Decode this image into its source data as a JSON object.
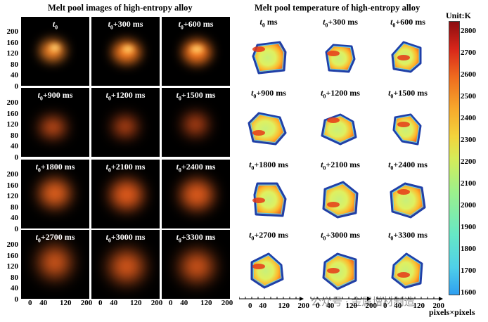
{
  "left_title": "Melt pool images of  high-entropy alloy",
  "right_title": "Melt pool temperature of  high-entropy alloy",
  "y_ticks": [
    "200",
    "160",
    "120",
    "80",
    "40",
    "0"
  ],
  "x_ticks": [
    "0",
    "40",
    "120",
    "200"
  ],
  "left_labels": [
    "t0",
    "t0+300 ms",
    "t0+600 ms",
    "t0+900 ms",
    "t0+1200 ms",
    "t0+1500 ms",
    "t0+1800 ms",
    "t0+2100 ms",
    "t0+2400 ms",
    "t0+2700 ms",
    "t0+3000 ms",
    "t0+3300 ms"
  ],
  "right_labels": [
    "t0 ms",
    "t0+300 ms",
    "t0+600 ms",
    "t0+900 ms",
    "t0+1200 ms",
    "t0+1500 ms",
    "t0+1800 ms",
    "t0+2100 ms",
    "t0+2400 ms",
    "t0+2700 ms",
    "t0+3000 ms",
    "t0+3300 ms"
  ],
  "colorbar": {
    "unit": "Unit:K",
    "ticks": [
      "2800",
      "2700",
      "2600",
      "2500",
      "2400",
      "2300",
      "2200",
      "2100",
      "2000",
      "1900",
      "1800",
      "1700",
      "1600"
    ]
  },
  "axis_caption": "pixels×pixels",
  "watermark": "公众号 · 金属增材制造"
}
